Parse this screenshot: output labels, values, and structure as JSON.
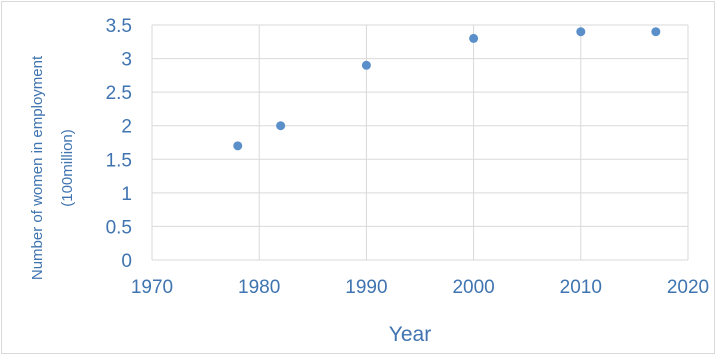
{
  "chart_data": {
    "type": "scatter",
    "title": "",
    "xlabel": "Year",
    "ylabel_lines": [
      "Number of women in employment",
      "(100million)"
    ],
    "x": [
      1978,
      1982,
      1990,
      2000,
      2010,
      2017
    ],
    "y": [
      1.7,
      2.0,
      2.9,
      3.3,
      3.4,
      3.4
    ],
    "xlim": [
      1970,
      2020
    ],
    "ylim": [
      0,
      3.5
    ],
    "xticks": [
      "1970",
      "1980",
      "1990",
      "2000",
      "2010",
      "2020"
    ],
    "yticks": [
      "0",
      "0.5",
      "1",
      "1.5",
      "2",
      "2.5",
      "3",
      "3.5"
    ],
    "grid": true,
    "legend": "none",
    "point_color": "#5b8fca",
    "text_color": "#3f74b0",
    "grid_color": "#d9d9d9"
  }
}
